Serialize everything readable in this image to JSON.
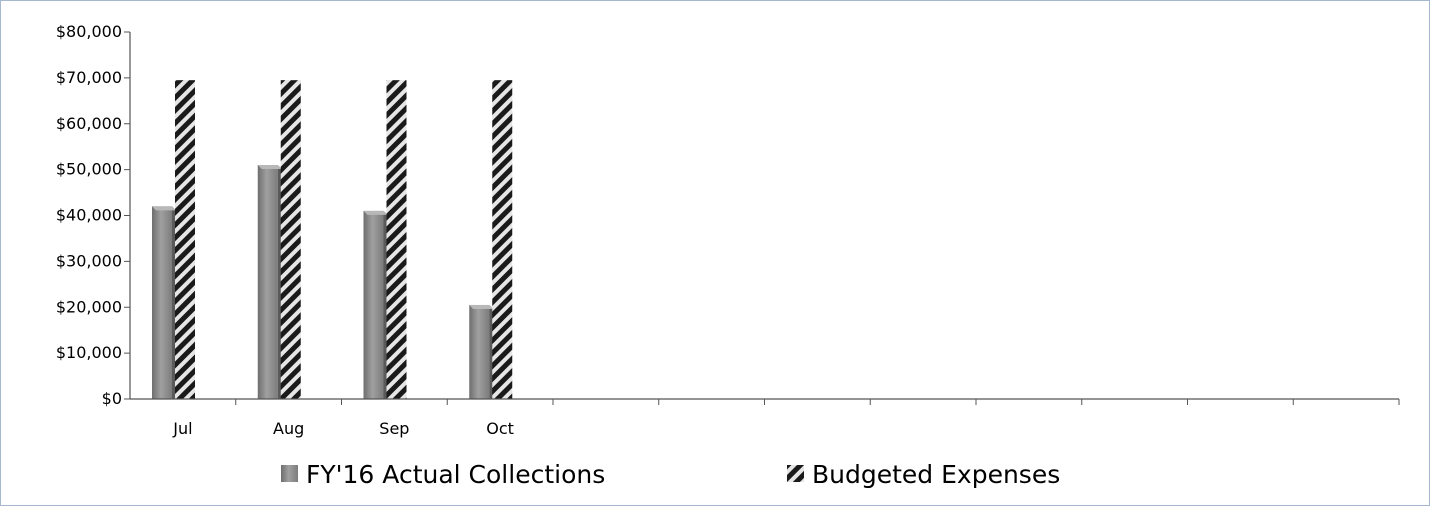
{
  "chart_data": {
    "type": "bar",
    "categories": [
      "Jul",
      "Aug",
      "Sep",
      "Oct",
      "",
      "",
      "",
      "",
      "",
      "",
      "",
      ""
    ],
    "series": [
      {
        "name": "FY'16 Actual Collections",
        "values": [
          42000,
          51000,
          41000,
          20500,
          null,
          null,
          null,
          null,
          null,
          null,
          null,
          null
        ]
      },
      {
        "name": "Budgeted Expenses",
        "values": [
          69500,
          69500,
          69500,
          69500,
          null,
          null,
          null,
          null,
          null,
          null,
          null,
          null
        ]
      }
    ],
    "ylim": [
      0,
      80000
    ],
    "yticks": [
      0,
      10000,
      20000,
      30000,
      40000,
      50000,
      60000,
      70000,
      80000
    ],
    "ytick_labels": [
      "$0",
      "$10,000",
      "$20,000",
      "$30,000",
      "$40,000",
      "$50,000",
      "$60,000",
      "$70,000",
      "$80,000"
    ],
    "title": "",
    "xlabel": "",
    "ylabel": "",
    "grid": false,
    "legend": {
      "position": "bottom",
      "items": [
        "FY'16 Actual Collections",
        "Budgeted Expenses"
      ]
    },
    "colors": {
      "collections": "#8c8c8c",
      "budget_dark": "#1a1a1a",
      "budget_light": "#e6e6e6"
    }
  }
}
